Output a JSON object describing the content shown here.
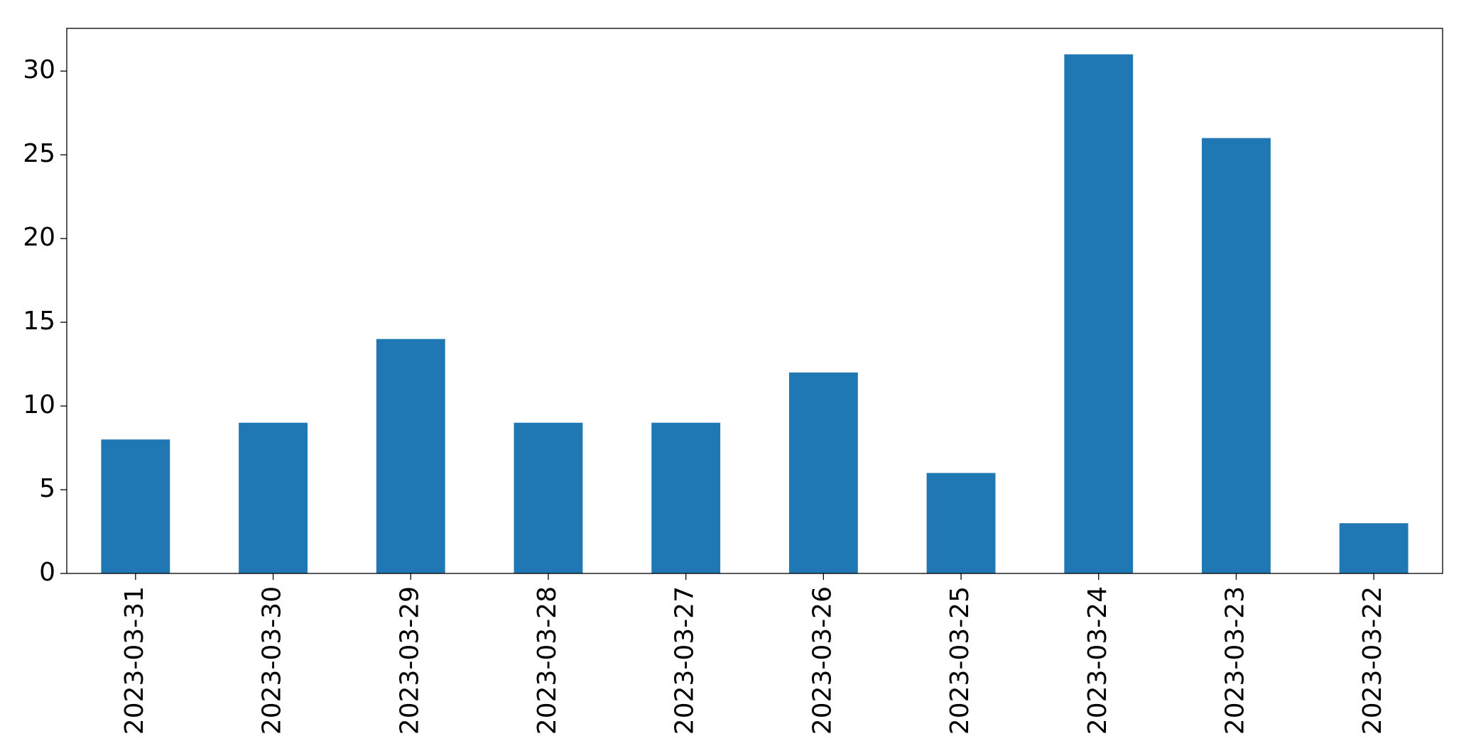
{
  "chart_data": {
    "type": "bar",
    "categories": [
      "2023-03-31",
      "2023-03-30",
      "2023-03-29",
      "2023-03-28",
      "2023-03-27",
      "2023-03-26",
      "2023-03-25",
      "2023-03-24",
      "2023-03-23",
      "2023-03-22"
    ],
    "values": [
      8,
      9,
      14,
      9,
      9,
      12,
      6,
      31,
      26,
      3
    ],
    "color": "#1f77b4",
    "ylim": [
      0,
      32.55
    ],
    "yticks": [
      0,
      5,
      10,
      15,
      20,
      25,
      30
    ],
    "grid": false
  }
}
